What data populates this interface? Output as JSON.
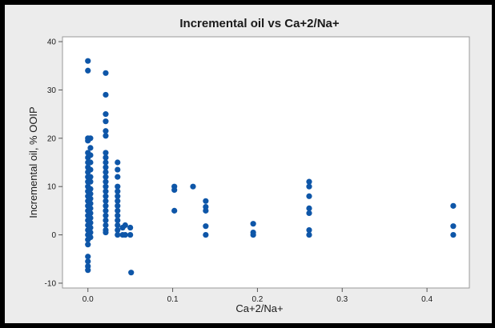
{
  "chart_data": {
    "type": "scatter",
    "title": "Incremental oil vs Ca+2/Na+",
    "xlabel": "Ca+2/Na+",
    "ylabel": "Incremental oil, % OOIP",
    "xlim": [
      -0.03,
      0.45
    ],
    "ylim": [
      -11,
      41
    ],
    "xticks": [
      0.0,
      0.1,
      0.2,
      0.3,
      0.4
    ],
    "xtick_labels": [
      "0.0",
      "0.1",
      "0.2",
      "0.3",
      "0.4"
    ],
    "yticks": [
      -10,
      0,
      10,
      20,
      30,
      40
    ],
    "ytick_labels": [
      "-10",
      "0",
      "10",
      "20",
      "30",
      "40"
    ],
    "grid": false,
    "marker_color": "#0e56a8",
    "points": [
      [
        0.0,
        36.0
      ],
      [
        0.0,
        34.0
      ],
      [
        0.0,
        20.0
      ],
      [
        0.0,
        19.5
      ],
      [
        0.0,
        17.0
      ],
      [
        0.0,
        16.0
      ],
      [
        0.0,
        15.0
      ],
      [
        0.0,
        14.0
      ],
      [
        0.0,
        13.0
      ],
      [
        0.0,
        12.0
      ],
      [
        0.0,
        11.0
      ],
      [
        0.0,
        10.0
      ],
      [
        0.0,
        9.0
      ],
      [
        0.0,
        8.0
      ],
      [
        0.0,
        7.0
      ],
      [
        0.0,
        6.0
      ],
      [
        0.0,
        5.0
      ],
      [
        0.0,
        4.0
      ],
      [
        0.0,
        3.0
      ],
      [
        0.0,
        2.0
      ],
      [
        0.0,
        1.0
      ],
      [
        0.0,
        0.0
      ],
      [
        0.0,
        -1.0
      ],
      [
        0.0,
        -2.0
      ],
      [
        0.0,
        -4.5
      ],
      [
        0.0,
        -5.5
      ],
      [
        0.0,
        -6.5
      ],
      [
        0.0,
        -7.3
      ],
      [
        0.003,
        20.0
      ],
      [
        0.003,
        18.0
      ],
      [
        0.003,
        16.5
      ],
      [
        0.003,
        15.0
      ],
      [
        0.003,
        13.5
      ],
      [
        0.003,
        12.0
      ],
      [
        0.003,
        11.0
      ],
      [
        0.003,
        9.5
      ],
      [
        0.003,
        8.5
      ],
      [
        0.003,
        7.5
      ],
      [
        0.003,
        6.5
      ],
      [
        0.003,
        5.5
      ],
      [
        0.003,
        4.5
      ],
      [
        0.003,
        3.5
      ],
      [
        0.003,
        2.5
      ],
      [
        0.003,
        1.5
      ],
      [
        0.003,
        0.5
      ],
      [
        0.003,
        -0.5
      ],
      [
        0.021,
        33.5
      ],
      [
        0.021,
        29.0
      ],
      [
        0.021,
        25.0
      ],
      [
        0.021,
        23.5
      ],
      [
        0.021,
        21.5
      ],
      [
        0.021,
        20.5
      ],
      [
        0.021,
        17.0
      ],
      [
        0.021,
        16.0
      ],
      [
        0.021,
        15.0
      ],
      [
        0.021,
        14.0
      ],
      [
        0.021,
        13.0
      ],
      [
        0.021,
        12.0
      ],
      [
        0.021,
        11.0
      ],
      [
        0.021,
        10.0
      ],
      [
        0.021,
        9.0
      ],
      [
        0.021,
        8.0
      ],
      [
        0.021,
        7.0
      ],
      [
        0.021,
        6.0
      ],
      [
        0.021,
        5.0
      ],
      [
        0.021,
        4.0
      ],
      [
        0.021,
        3.0
      ],
      [
        0.021,
        2.0
      ],
      [
        0.021,
        1.0
      ],
      [
        0.021,
        0.5
      ],
      [
        0.035,
        15.0
      ],
      [
        0.035,
        13.5
      ],
      [
        0.035,
        12.0
      ],
      [
        0.035,
        10.0
      ],
      [
        0.035,
        9.0
      ],
      [
        0.035,
        8.0
      ],
      [
        0.035,
        7.0
      ],
      [
        0.035,
        6.0
      ],
      [
        0.035,
        5.0
      ],
      [
        0.035,
        4.0
      ],
      [
        0.035,
        3.0
      ],
      [
        0.035,
        2.0
      ],
      [
        0.035,
        1.0
      ],
      [
        0.035,
        0.0
      ],
      [
        0.041,
        1.5
      ],
      [
        0.041,
        0.0
      ],
      [
        0.044,
        2.0
      ],
      [
        0.044,
        0.0
      ],
      [
        0.05,
        1.5
      ],
      [
        0.05,
        0.0
      ],
      [
        0.051,
        -7.8
      ],
      [
        0.102,
        10.0
      ],
      [
        0.102,
        9.3
      ],
      [
        0.102,
        5.0
      ],
      [
        0.124,
        10.0
      ],
      [
        0.139,
        7.0
      ],
      [
        0.139,
        5.8
      ],
      [
        0.139,
        5.0
      ],
      [
        0.139,
        1.8
      ],
      [
        0.139,
        0.0
      ],
      [
        0.195,
        2.3
      ],
      [
        0.195,
        0.5
      ],
      [
        0.195,
        0.0
      ],
      [
        0.261,
        11.0
      ],
      [
        0.261,
        10.0
      ],
      [
        0.261,
        8.0
      ],
      [
        0.261,
        5.5
      ],
      [
        0.261,
        4.5
      ],
      [
        0.261,
        1.0
      ],
      [
        0.261,
        0.0
      ],
      [
        0.431,
        6.0
      ],
      [
        0.431,
        1.8
      ],
      [
        0.431,
        0.0
      ]
    ]
  }
}
